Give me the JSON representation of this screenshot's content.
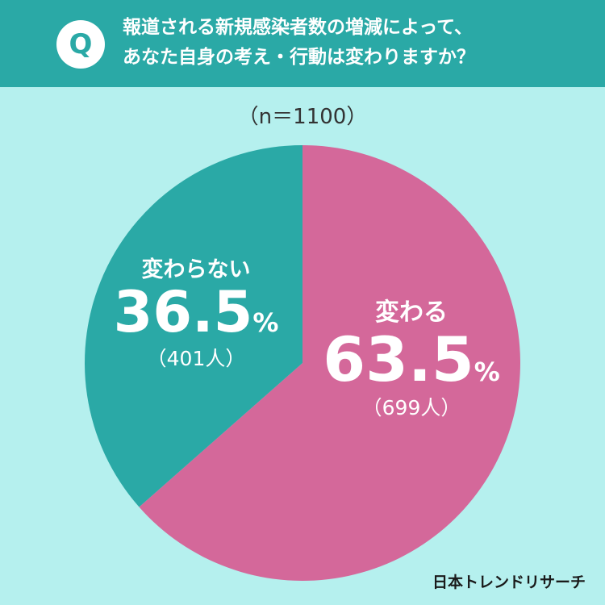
{
  "header": {
    "badge": "Q",
    "question_line1": "報道される新規感染者数の増減によって、",
    "question_line2": "あなた自身の考え・行動は変わりますか？",
    "background_color": "#2aa9a6"
  },
  "sample_size": "（n＝1100）",
  "brand": "日本トレンドリサーチ",
  "chart_data": {
    "type": "pie",
    "title": "報道される新規感染者数の増減によって、あなた自身の考え・行動は変わりますか？",
    "n": 1100,
    "slices": [
      {
        "label": "変わる",
        "percent": 63.5,
        "count": 699,
        "color": "#d4689a",
        "percent_text": "63.5",
        "unit": "%",
        "count_text": "（699人）"
      },
      {
        "label": "変わらない",
        "percent": 36.5,
        "count": 401,
        "color": "#2aa9a6",
        "percent_text": "36.5",
        "unit": "%",
        "count_text": "（401人）"
      }
    ],
    "start_angle_deg": 0,
    "direction": "clockwise",
    "legend": "none"
  }
}
